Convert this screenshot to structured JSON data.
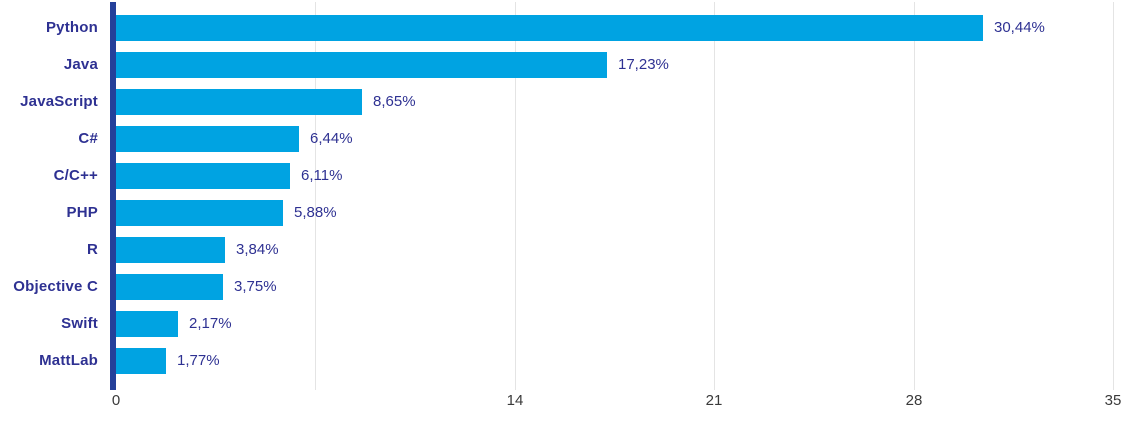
{
  "chart_data": {
    "type": "bar",
    "orientation": "horizontal",
    "title": "",
    "xlabel": "",
    "ylabel": "",
    "categories": [
      "Python",
      "Java",
      "JavaScript",
      "C#",
      "C/C++",
      "PHP",
      "R",
      "Objective C",
      "Swift",
      "MattLab"
    ],
    "values": [
      30.44,
      17.23,
      8.65,
      6.44,
      6.11,
      5.88,
      3.84,
      3.75,
      2.17,
      1.77
    ],
    "value_labels": [
      "30,44%",
      "17,23%",
      "8,65%",
      "6,44%",
      "6,11%",
      "5,88%",
      "3,84%",
      "3,75%",
      "2,17%",
      "1,77%"
    ],
    "xlim": [
      0,
      35
    ],
    "x_tick_labels": [
      "0",
      "14",
      "21",
      "28",
      "35"
    ],
    "x_tick_values": [
      0,
      14,
      21,
      28,
      35
    ],
    "gridline_values": [
      7,
      14,
      21,
      28,
      35
    ],
    "grid": "vertical-only",
    "legend": "none",
    "colors": {
      "bar": "#00a3e2",
      "category_text": "#2e3192",
      "value_text": "#2e3192",
      "axis_line": "#24409a",
      "gridline": "#e4e4e4",
      "tick_text": "#3a3a3a",
      "background": "#ffffff"
    }
  }
}
